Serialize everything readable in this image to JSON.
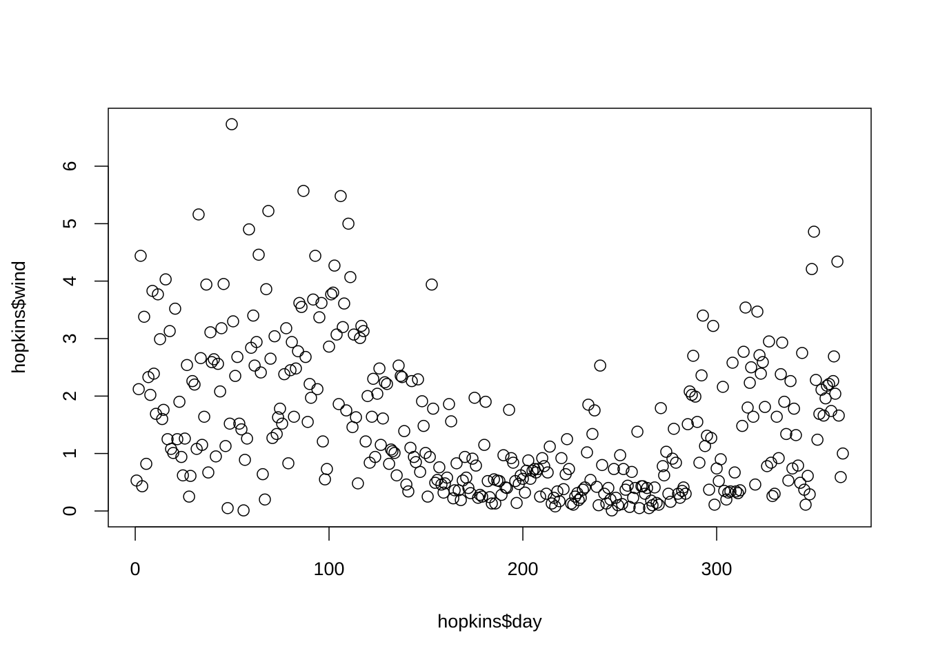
{
  "chart_data": {
    "type": "scatter",
    "xlabel": "hopkins$day",
    "ylabel": "hopkins$wind",
    "color": "#000000",
    "x": [
      0.7,
      1.8,
      2.8,
      3.6,
      4.6,
      5.7,
      6.8,
      7.8,
      8.9,
      9.6,
      10.7,
      11.7,
      12.8,
      13.9,
      14.6,
      15.7,
      16.7,
      17.8,
      18.5,
      19.6,
      20.6,
      21.7,
      22.8,
      23.8,
      24.6,
      25.6,
      26.7,
      27.8,
      28.5,
      29.5,
      30.6,
      31.7,
      32.7,
      33.8,
      34.5,
      35.6,
      36.7,
      37.7,
      38.8,
      39.5,
      40.6,
      41.6,
      42.7,
      43.8,
      44.5,
      45.6,
      46.6,
      47.7,
      48.8,
      49.8,
      50.5,
      51.6,
      52.7,
      53.7,
      54.8,
      55.9,
      56.6,
      57.7,
      58.7,
      59.8,
      60.9,
      61.6,
      62.6,
      63.7,
      64.8,
      65.8,
      66.9,
      67.6,
      68.7,
      69.8,
      70.8,
      71.9,
      73.0,
      73.7,
      74.7,
      75.8,
      76.9,
      77.9,
      79.0,
      80.1,
      80.8,
      81.9,
      82.9,
      84.0,
      84.7,
      85.8,
      86.8,
      87.9,
      89.0,
      90.0,
      90.7,
      91.8,
      92.9,
      94.0,
      95.0,
      96.1,
      96.8,
      97.9,
      98.9,
      100.0,
      101.1,
      102.1,
      102.8,
      103.9,
      105.0,
      106.0,
      107.1,
      107.8,
      108.9,
      110.0,
      111.0,
      112.1,
      112.8,
      113.9,
      114.9,
      116.0,
      116.7,
      117.8,
      118.9,
      119.9,
      121.0,
      122.1,
      122.8,
      123.8,
      124.9,
      126.0,
      126.7,
      127.8,
      128.8,
      129.9,
      131.0,
      132.0,
      132.7,
      133.8,
      134.9,
      135.9,
      137.0,
      137.7,
      138.8,
      139.9,
      140.9,
      142.0,
      142.7,
      143.8,
      144.8,
      145.9,
      147.0,
      148.0,
      148.8,
      149.8,
      150.9,
      152.0,
      153.0,
      153.7,
      154.8,
      155.9,
      156.9,
      158.0,
      159.1,
      159.8,
      160.9,
      161.9,
      163.0,
      164.1,
      164.8,
      165.8,
      166.9,
      168.0,
      169.0,
      170.1,
      170.8,
      171.9,
      173.0,
      174.0,
      175.1,
      175.8,
      176.9,
      177.9,
      179.0,
      180.1,
      180.8,
      181.9,
      182.9,
      184.0,
      185.1,
      185.8,
      186.8,
      187.9,
      189.0,
      190.0,
      191.1,
      191.8,
      192.9,
      194.0,
      195.0,
      196.1,
      196.8,
      197.9,
      198.9,
      200.0,
      201.1,
      201.8,
      202.8,
      203.9,
      205.0,
      206.0,
      206.8,
      207.8,
      208.9,
      210.0,
      211.0,
      212.1,
      212.8,
      213.9,
      214.9,
      216.0,
      216.7,
      217.8,
      218.9,
      219.9,
      221.0,
      222.1,
      222.8,
      223.8,
      224.9,
      226.0,
      227.0,
      228.1,
      228.8,
      229.9,
      231.0,
      232.0,
      233.1,
      233.8,
      234.9,
      235.9,
      237.0,
      238.1,
      239.1,
      239.9,
      240.9,
      242.0,
      243.1,
      244.1,
      245.2,
      245.9,
      247.0,
      248.0,
      249.1,
      250.2,
      251.2,
      251.9,
      253.0,
      254.1,
      255.1,
      256.2,
      256.9,
      258.0,
      259.1,
      260.1,
      261.2,
      261.9,
      263.0,
      264.1,
      265.1,
      266.2,
      266.9,
      268.0,
      269.0,
      270.1,
      271.2,
      272.2,
      272.9,
      274.0,
      275.1,
      276.2,
      277.2,
      277.9,
      279.0,
      280.1,
      281.1,
      282.2,
      282.9,
      284.0,
      285.1,
      286.1,
      287.2,
      287.9,
      289.0,
      290.0,
      291.1,
      292.2,
      292.9,
      294.0,
      295.0,
      296.1,
      297.2,
      298.2,
      298.9,
      300.0,
      301.1,
      302.1,
      303.2,
      303.9,
      305.0,
      306.0,
      307.1,
      308.2,
      309.3,
      310.0,
      311.0,
      312.1,
      313.2,
      313.9,
      314.9,
      316.0,
      317.1,
      317.8,
      318.9,
      319.9,
      321.0,
      322.1,
      322.8,
      323.8,
      324.9,
      326.0,
      327.0,
      328.1,
      328.8,
      329.9,
      331.0,
      332.0,
      333.1,
      333.8,
      334.9,
      335.9,
      337.0,
      338.1,
      339.1,
      339.9,
      340.9,
      342.0,
      343.1,
      344.1,
      345.2,
      345.9,
      347.0,
      348.0,
      349.1,
      350.2,
      351.2,
      352.0,
      353.0,
      354.1,
      355.2,
      356.2,
      356.9,
      358.0,
      359.1,
      360.1,
      360.5,
      361.2,
      362.3,
      363.0,
      364.0,
      365.1
    ],
    "values": [
      0.53,
      2.12,
      4.44,
      0.43,
      3.38,
      0.82,
      2.33,
      2.02,
      3.83,
      2.39,
      1.69,
      3.77,
      2.99,
      1.6,
      1.76,
      4.03,
      1.25,
      3.13,
      1.08,
      1.01,
      3.52,
      1.25,
      1.9,
      0.94,
      0.62,
      1.26,
      2.54,
      0.25,
      0.61,
      2.26,
      2.2,
      1.08,
      5.16,
      2.66,
      1.15,
      1.64,
      3.94,
      0.67,
      3.11,
      2.59,
      2.64,
      0.95,
      2.56,
      2.08,
      3.18,
      3.95,
      1.13,
      0.05,
      1.52,
      6.73,
      3.3,
      2.35,
      2.68,
      1.52,
      1.42,
      0.01,
      0.89,
      1.26,
      4.9,
      2.84,
      3.4,
      2.53,
      2.94,
      4.46,
      2.41,
      0.64,
      0.2,
      3.86,
      5.22,
      2.65,
      1.27,
      3.04,
      1.34,
      1.63,
      1.78,
      1.52,
      2.38,
      3.18,
      0.83,
      2.45,
      2.94,
      1.64,
      2.48,
      2.78,
      3.62,
      3.55,
      5.57,
      2.68,
      1.55,
      2.21,
      1.97,
      3.68,
      4.44,
      2.12,
      3.37,
      3.62,
      1.21,
      0.55,
      0.73,
      2.86,
      3.77,
      3.8,
      4.27,
      3.07,
      1.86,
      5.48,
      3.2,
      3.61,
      1.75,
      5.0,
      4.07,
      1.46,
      3.07,
      1.63,
      0.48,
      3.01,
      3.22,
      3.13,
      1.21,
      2.0,
      0.84,
      1.64,
      2.3,
      0.94,
      2.04,
      2.48,
      1.15,
      1.61,
      2.24,
      2.21,
      0.82,
      1.07,
      1.04,
      1.01,
      0.62,
      2.53,
      2.35,
      2.33,
      1.39,
      0.46,
      0.34,
      1.1,
      2.26,
      0.94,
      0.85,
      2.29,
      0.68,
      1.91,
      1.48,
      1.01,
      0.25,
      0.94,
      3.94,
      1.78,
      0.49,
      0.54,
      0.76,
      0.46,
      0.32,
      0.48,
      0.58,
      1.86,
      1.56,
      0.22,
      0.36,
      0.83,
      0.36,
      0.19,
      0.53,
      0.94,
      0.58,
      0.4,
      0.31,
      0.91,
      1.97,
      0.79,
      0.23,
      0.28,
      0.25,
      1.15,
      1.9,
      0.52,
      0.24,
      0.13,
      0.55,
      0.13,
      0.53,
      0.52,
      0.28,
      0.97,
      0.41,
      0.4,
      1.76,
      0.92,
      0.84,
      0.52,
      0.14,
      0.47,
      0.62,
      0.56,
      0.32,
      0.7,
      0.88,
      0.56,
      0.7,
      0.73,
      0.67,
      0.73,
      0.25,
      0.92,
      0.78,
      0.3,
      0.67,
      1.12,
      0.13,
      0.23,
      0.08,
      0.34,
      0.17,
      0.92,
      0.38,
      0.64,
      1.25,
      0.73,
      0.13,
      0.11,
      0.25,
      0.31,
      0.19,
      0.23,
      0.37,
      0.41,
      1.02,
      1.85,
      0.54,
      1.34,
      1.75,
      0.42,
      0.1,
      2.53,
      0.8,
      0.3,
      0.13,
      0.4,
      0.2,
      0.01,
      0.73,
      0.23,
      0.1,
      0.97,
      0.12,
      0.73,
      0.37,
      0.44,
      0.07,
      0.68,
      0.23,
      0.4,
      1.38,
      0.05,
      0.43,
      0.43,
      0.3,
      0.4,
      0.05,
      0.18,
      0.1,
      0.41,
      0.14,
      0.11,
      1.79,
      0.78,
      0.62,
      1.03,
      0.3,
      0.16,
      0.91,
      1.43,
      0.84,
      0.3,
      0.23,
      0.35,
      0.41,
      0.3,
      1.51,
      2.08,
      2.02,
      2.7,
      1.99,
      1.55,
      0.84,
      2.36,
      3.4,
      1.13,
      1.31,
      0.37,
      1.27,
      3.22,
      0.11,
      0.74,
      0.52,
      0.9,
      2.16,
      0.35,
      0.2,
      0.32,
      0.34,
      2.58,
      0.67,
      0.34,
      0.31,
      0.36,
      1.48,
      2.77,
      3.54,
      1.8,
      2.23,
      2.5,
      1.64,
      0.46,
      3.47,
      2.71,
      2.39,
      2.59,
      1.81,
      0.78,
      2.95,
      0.84,
      0.26,
      0.3,
      1.64,
      0.92,
      2.38,
      2.93,
      1.9,
      1.34,
      0.53,
      2.26,
      0.74,
      1.78,
      1.32,
      0.79,
      0.49,
      2.75,
      0.37,
      0.11,
      0.61,
      0.29,
      4.21,
      4.86,
      2.28,
      1.24,
      1.69,
      2.11,
      1.66,
      1.96,
      2.18,
      2.21,
      1.74,
      2.26,
      2.69,
      2.04,
      4.34,
      1.66,
      0.59,
      1.0
    ],
    "xlim": [
      -13.9,
      379.7
    ],
    "ylim": [
      -0.276,
      7.008
    ],
    "xticks": [
      0,
      100,
      200,
      300
    ],
    "yticks": [
      0,
      1,
      2,
      3,
      4,
      5,
      6
    ]
  }
}
